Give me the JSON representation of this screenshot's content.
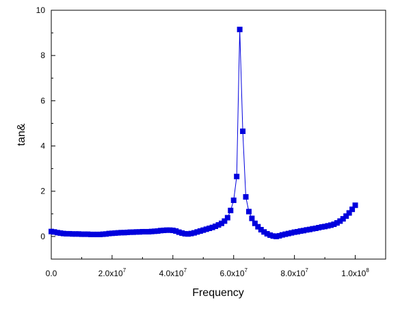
{
  "chart_data": {
    "type": "line",
    "title": "",
    "xlabel": "Frequency",
    "ylabel": "tan&",
    "xlim": [
      0,
      110000000
    ],
    "ylim": [
      -1,
      10
    ],
    "grid": false,
    "legend": "none",
    "marker": "square",
    "color": "#0000dd",
    "xticks": [
      {
        "value": 0,
        "label": "0.0",
        "exp": ""
      },
      {
        "value": 20000000,
        "label": "2.0x10",
        "exp": "7"
      },
      {
        "value": 40000000,
        "label": "4.0x10",
        "exp": "7"
      },
      {
        "value": 60000000,
        "label": "6.0x10",
        "exp": "7"
      },
      {
        "value": 80000000,
        "label": "8.0x10",
        "exp": "7"
      },
      {
        "value": 100000000,
        "label": "1.0x10",
        "exp": "8"
      }
    ],
    "yticks": [
      {
        "value": 0,
        "label": "0"
      },
      {
        "value": 2,
        "label": "2"
      },
      {
        "value": 4,
        "label": "4"
      },
      {
        "value": 6,
        "label": "6"
      },
      {
        "value": 8,
        "label": "8"
      },
      {
        "value": 10,
        "label": "10"
      }
    ],
    "series": [
      {
        "x": [
          0,
          1000000,
          2000000,
          3000000,
          4000000,
          5000000,
          6000000,
          7000000,
          8000000,
          9000000,
          10000000,
          11000000,
          12000000,
          13000000,
          14000000,
          15000000,
          16000000,
          17000000,
          18000000,
          19000000,
          20000000,
          21000000,
          22000000,
          23000000,
          24000000,
          25000000,
          26000000,
          27000000,
          28000000,
          29000000,
          30000000,
          31000000,
          32000000,
          33000000,
          34000000,
          35000000,
          36000000,
          37000000,
          38000000,
          39000000,
          40000000,
          41000000,
          42000000,
          43000000,
          44000000,
          45000000,
          46000000,
          47000000,
          48000000,
          49000000,
          50000000,
          51000000,
          52000000,
          53000000,
          54000000,
          55000000,
          56000000,
          57000000,
          58000000,
          59000000,
          60000000,
          61000000,
          62000000,
          63000000,
          64000000,
          65000000,
          66000000,
          67000000,
          68000000,
          69000000,
          70000000,
          71000000,
          72000000,
          73000000,
          74000000,
          75000000,
          76000000,
          77000000,
          78000000,
          79000000,
          80000000,
          81000000,
          82000000,
          83000000,
          84000000,
          85000000,
          86000000,
          87000000,
          88000000,
          89000000,
          90000000,
          91000000,
          92000000,
          93000000,
          94000000,
          95000000,
          96000000,
          97000000,
          98000000,
          99000000,
          100000000
        ],
        "values": [
          0.22,
          0.2,
          0.17,
          0.15,
          0.13,
          0.12,
          0.12,
          0.11,
          0.11,
          0.11,
          0.1,
          0.1,
          0.1,
          0.09,
          0.09,
          0.09,
          0.09,
          0.1,
          0.11,
          0.13,
          0.14,
          0.15,
          0.16,
          0.17,
          0.17,
          0.18,
          0.19,
          0.19,
          0.2,
          0.2,
          0.21,
          0.21,
          0.21,
          0.22,
          0.23,
          0.24,
          0.26,
          0.27,
          0.28,
          0.28,
          0.27,
          0.24,
          0.19,
          0.15,
          0.12,
          0.11,
          0.13,
          0.16,
          0.2,
          0.24,
          0.28,
          0.32,
          0.36,
          0.4,
          0.45,
          0.51,
          0.58,
          0.68,
          0.83,
          1.15,
          1.6,
          2.65,
          9.15,
          4.65,
          1.75,
          1.1,
          0.8,
          0.58,
          0.43,
          0.3,
          0.2,
          0.12,
          0.06,
          0.02,
          0.0,
          0.03,
          0.07,
          0.1,
          0.13,
          0.16,
          0.19,
          0.21,
          0.24,
          0.26,
          0.29,
          0.31,
          0.34,
          0.36,
          0.39,
          0.42,
          0.44,
          0.47,
          0.5,
          0.54,
          0.6,
          0.68,
          0.78,
          0.9,
          1.04,
          1.2,
          1.38
        ]
      }
    ]
  }
}
